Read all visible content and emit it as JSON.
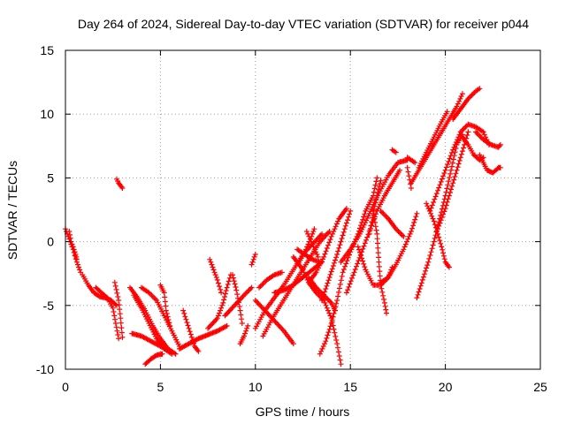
{
  "chart_data": {
    "type": "scatter",
    "title": "Day 264 of 2024, Sidereal Day-to-day VTEC variation (SDTVAR) for receiver p044",
    "xlabel": "GPS time / hours",
    "ylabel": "SDTVAR / TECUs",
    "xlim": [
      0,
      25
    ],
    "ylim": [
      -10,
      15
    ],
    "xticks": [
      0,
      5,
      10,
      15,
      20,
      25
    ],
    "yticks": [
      -10,
      -5,
      0,
      5,
      10,
      15
    ],
    "grid": true,
    "marker": "+",
    "color": "#ff0000",
    "series_traces": [
      [
        [
          0.0,
          1.0
        ],
        [
          0.2,
          0.2
        ],
        [
          0.4,
          -0.6
        ],
        [
          0.6,
          -1.6
        ],
        [
          0.8,
          -2.4
        ]
      ],
      [
        [
          0.2,
          0.8
        ],
        [
          0.3,
          0.0
        ],
        [
          0.5,
          -0.8
        ],
        [
          0.6,
          -1.4
        ]
      ],
      [
        [
          0.9,
          -2.6
        ],
        [
          1.2,
          -3.4
        ],
        [
          1.5,
          -4.0
        ],
        [
          1.8,
          -4.3
        ],
        [
          2.1,
          -4.4
        ],
        [
          2.4,
          -4.6
        ],
        [
          2.7,
          -5.0
        ]
      ],
      [
        [
          1.6,
          -3.6
        ],
        [
          1.9,
          -4.0
        ],
        [
          2.2,
          -4.4
        ],
        [
          2.5,
          -5.2
        ],
        [
          2.8,
          -7.6
        ]
      ],
      [
        [
          2.6,
          -3.2
        ],
        [
          2.8,
          -4.6
        ],
        [
          2.9,
          -6.0
        ],
        [
          3.0,
          -7.5
        ]
      ],
      [
        [
          2.7,
          4.9
        ],
        [
          2.8,
          4.6
        ],
        [
          3.0,
          4.2
        ]
      ],
      [
        [
          3.4,
          -3.6
        ],
        [
          3.8,
          -4.4
        ],
        [
          4.2,
          -5.4
        ],
        [
          4.6,
          -6.6
        ],
        [
          5.0,
          -7.6
        ],
        [
          5.4,
          -8.4
        ],
        [
          5.8,
          -8.8
        ]
      ],
      [
        [
          3.6,
          -4.2
        ],
        [
          4.0,
          -5.2
        ],
        [
          4.4,
          -6.4
        ],
        [
          4.8,
          -7.6
        ],
        [
          5.2,
          -8.4
        ],
        [
          5.6,
          -8.8
        ]
      ],
      [
        [
          3.5,
          -7.2
        ],
        [
          4.0,
          -7.4
        ],
        [
          4.5,
          -7.8
        ],
        [
          5.0,
          -8.2
        ],
        [
          5.5,
          -8.6
        ]
      ],
      [
        [
          4.2,
          -9.6
        ],
        [
          4.5,
          -9.2
        ],
        [
          4.8,
          -8.9
        ],
        [
          5.1,
          -8.8
        ]
      ],
      [
        [
          4.0,
          -3.6
        ],
        [
          4.4,
          -4.0
        ],
        [
          4.8,
          -4.6
        ],
        [
          5.2,
          -5.8
        ],
        [
          5.6,
          -7.0
        ],
        [
          6.0,
          -8.2
        ]
      ],
      [
        [
          5.0,
          -3.4
        ],
        [
          5.2,
          -4.0
        ],
        [
          5.3,
          -5.4
        ],
        [
          5.5,
          -6.6
        ]
      ],
      [
        [
          6.0,
          -8.4
        ],
        [
          6.5,
          -8.0
        ],
        [
          7.0,
          -7.6
        ],
        [
          7.5,
          -7.3
        ],
        [
          8.0,
          -7.0
        ],
        [
          8.5,
          -6.6
        ]
      ],
      [
        [
          6.2,
          -5.4
        ],
        [
          6.5,
          -6.8
        ],
        [
          6.8,
          -8.2
        ],
        [
          7.0,
          -8.6
        ]
      ],
      [
        [
          7.5,
          -6.8
        ],
        [
          8.0,
          -6.0
        ],
        [
          8.3,
          -4.8
        ],
        [
          8.5,
          -3.6
        ],
        [
          8.7,
          -2.6
        ]
      ],
      [
        [
          7.6,
          -1.4
        ],
        [
          7.8,
          -2.2
        ],
        [
          8.0,
          -3.0
        ],
        [
          8.2,
          -4.0
        ]
      ],
      [
        [
          8.4,
          -5.8
        ],
        [
          8.9,
          -5.0
        ],
        [
          9.4,
          -4.2
        ],
        [
          9.8,
          -3.6
        ]
      ],
      [
        [
          8.8,
          -2.6
        ],
        [
          9.0,
          -3.8
        ],
        [
          9.2,
          -5.4
        ],
        [
          9.3,
          -6.4
        ]
      ],
      [
        [
          9.2,
          -8.0
        ],
        [
          9.4,
          -7.4
        ],
        [
          9.6,
          -6.6
        ]
      ],
      [
        [
          10.0,
          -1.0
        ],
        [
          9.9,
          -1.4
        ],
        [
          9.8,
          -1.8
        ]
      ],
      [
        [
          10.0,
          -4.6
        ],
        [
          10.5,
          -5.4
        ],
        [
          11.0,
          -6.2
        ],
        [
          11.5,
          -7.0
        ],
        [
          12.0,
          -8.0
        ]
      ],
      [
        [
          10.0,
          -6.8
        ],
        [
          10.5,
          -5.4
        ],
        [
          11.0,
          -4.4
        ],
        [
          11.5,
          -3.4
        ],
        [
          12.0,
          -2.2
        ],
        [
          12.5,
          -1.0
        ],
        [
          13.0,
          -0.2
        ],
        [
          13.5,
          0.6
        ]
      ],
      [
        [
          10.4,
          -7.4
        ],
        [
          10.9,
          -6.0
        ],
        [
          11.4,
          -4.8
        ],
        [
          11.9,
          -3.6
        ],
        [
          12.4,
          -2.4
        ],
        [
          12.9,
          -1.2
        ],
        [
          13.4,
          0.0
        ],
        [
          13.9,
          0.8
        ]
      ],
      [
        [
          10.2,
          -3.6
        ],
        [
          10.6,
          -3.0
        ],
        [
          11.0,
          -2.6
        ],
        [
          11.4,
          -2.4
        ]
      ],
      [
        [
          11.0,
          -4.0
        ],
        [
          11.5,
          -3.8
        ],
        [
          12.0,
          -3.4
        ],
        [
          12.5,
          -2.8
        ],
        [
          13.0,
          -2.2
        ],
        [
          13.5,
          -1.6
        ]
      ],
      [
        [
          12.0,
          -1.2
        ],
        [
          12.2,
          -1.6
        ],
        [
          12.5,
          -2.2
        ],
        [
          12.8,
          -3.2
        ],
        [
          13.2,
          -4.0
        ],
        [
          13.6,
          -4.6
        ],
        [
          14.0,
          -6.0
        ],
        [
          14.3,
          -8.0
        ],
        [
          14.5,
          -9.6
        ]
      ],
      [
        [
          12.3,
          -1.6
        ],
        [
          12.6,
          -0.8
        ],
        [
          12.9,
          0.2
        ],
        [
          13.1,
          1.0
        ]
      ],
      [
        [
          12.8,
          -2.8
        ],
        [
          13.2,
          -3.6
        ],
        [
          13.6,
          -4.2
        ],
        [
          14.0,
          -4.8
        ],
        [
          14.2,
          -5.4
        ]
      ],
      [
        [
          12.7,
          0.8
        ],
        [
          13.0,
          -0.2
        ],
        [
          13.3,
          -1.2
        ]
      ],
      [
        [
          12.2,
          -0.6
        ],
        [
          12.6,
          -1.0
        ],
        [
          13.0,
          -1.4
        ],
        [
          13.4,
          -1.6
        ]
      ],
      [
        [
          12.8,
          -3.2
        ],
        [
          13.2,
          -2.4
        ],
        [
          13.6,
          -1.2
        ],
        [
          14.0,
          0.4
        ],
        [
          14.4,
          1.8
        ],
        [
          14.8,
          2.6
        ]
      ],
      [
        [
          13.5,
          -4.6
        ],
        [
          13.9,
          -2.8
        ],
        [
          14.3,
          -1.0
        ],
        [
          14.7,
          1.0
        ],
        [
          15.0,
          2.4
        ]
      ],
      [
        [
          13.4,
          -8.8
        ],
        [
          13.7,
          -7.8
        ],
        [
          14.0,
          -6.4
        ],
        [
          14.3,
          -4.6
        ],
        [
          14.6,
          -2.4
        ],
        [
          15.0,
          -0.8
        ],
        [
          15.4,
          0.6
        ],
        [
          15.8,
          2.4
        ],
        [
          16.2,
          3.6
        ],
        [
          16.4,
          5.0
        ]
      ],
      [
        [
          14.5,
          -1.6
        ],
        [
          15.0,
          -0.6
        ],
        [
          15.5,
          0.6
        ],
        [
          16.0,
          2.2
        ],
        [
          16.5,
          3.8
        ],
        [
          17.0,
          5.2
        ],
        [
          17.5,
          6.2
        ],
        [
          18.0,
          6.4
        ]
      ],
      [
        [
          14.8,
          -4.0
        ],
        [
          15.2,
          -2.4
        ],
        [
          15.6,
          -0.8
        ],
        [
          16.0,
          0.8
        ],
        [
          16.4,
          2.4
        ],
        [
          16.8,
          3.6
        ],
        [
          17.2,
          4.6
        ],
        [
          17.6,
          5.6
        ]
      ],
      [
        [
          15.4,
          -0.4
        ],
        [
          15.8,
          -2.2
        ],
        [
          16.2,
          -3.4
        ],
        [
          16.6,
          -3.4
        ],
        [
          17.0,
          -2.8
        ],
        [
          17.2,
          -2.0
        ]
      ],
      [
        [
          16.0,
          0.6
        ],
        [
          16.2,
          2.2
        ],
        [
          16.4,
          3.6
        ],
        [
          16.6,
          4.8
        ]
      ],
      [
        [
          16.2,
          2.4
        ],
        [
          16.4,
          0.6
        ],
        [
          16.5,
          -1.6
        ],
        [
          16.6,
          -3.4
        ],
        [
          16.8,
          -4.8
        ],
        [
          16.9,
          -5.6
        ]
      ],
      [
        [
          16.6,
          2.4
        ],
        [
          17.0,
          1.8
        ],
        [
          17.4,
          1.0
        ],
        [
          17.8,
          0.4
        ]
      ],
      [
        [
          18.0,
          5.8
        ],
        [
          18.2,
          4.2
        ]
      ],
      [
        [
          16.6,
          -3.2
        ],
        [
          17.0,
          -2.8
        ],
        [
          17.4,
          -1.8
        ],
        [
          17.8,
          -0.6
        ],
        [
          18.2,
          0.8
        ],
        [
          18.5,
          2.2
        ]
      ],
      [
        [
          17.2,
          7.2
        ],
        [
          17.4,
          7.0
        ]
      ],
      [
        [
          18.0,
          6.6
        ],
        [
          18.2,
          6.4
        ],
        [
          18.4,
          6.2
        ]
      ],
      [
        [
          18.5,
          -4.4
        ],
        [
          18.8,
          -3.0
        ],
        [
          19.1,
          -1.6
        ],
        [
          19.4,
          0.0
        ],
        [
          19.7,
          1.8
        ],
        [
          20.0,
          3.6
        ],
        [
          20.3,
          5.6
        ],
        [
          20.6,
          7.6
        ],
        [
          20.9,
          8.4
        ]
      ],
      [
        [
          19.0,
          3.0
        ],
        [
          19.4,
          1.6
        ],
        [
          19.8,
          -0.4
        ],
        [
          20.0,
          -1.6
        ],
        [
          20.2,
          -2.0
        ]
      ],
      [
        [
          18.2,
          4.6
        ],
        [
          18.6,
          5.6
        ],
        [
          19.0,
          6.6
        ],
        [
          19.4,
          7.6
        ],
        [
          19.8,
          8.6
        ],
        [
          20.2,
          9.6
        ],
        [
          20.6,
          10.6
        ],
        [
          20.9,
          11.6
        ]
      ],
      [
        [
          18.6,
          5.8
        ],
        [
          19.0,
          7.0
        ],
        [
          19.4,
          8.2
        ],
        [
          19.8,
          9.4
        ],
        [
          20.1,
          10.2
        ]
      ],
      [
        [
          19.2,
          2.4
        ],
        [
          19.6,
          4.0
        ],
        [
          20.0,
          5.6
        ],
        [
          20.4,
          7.2
        ],
        [
          20.8,
          8.6
        ],
        [
          21.2,
          9.2
        ],
        [
          21.6,
          9.0
        ],
        [
          22.0,
          8.6
        ],
        [
          22.3,
          7.6
        ]
      ],
      [
        [
          19.6,
          1.0
        ],
        [
          20.0,
          2.6
        ],
        [
          20.4,
          4.6
        ],
        [
          20.8,
          6.6
        ],
        [
          21.2,
          8.6
        ]
      ],
      [
        [
          20.4,
          9.6
        ],
        [
          20.8,
          10.4
        ],
        [
          21.2,
          11.2
        ],
        [
          21.6,
          11.8
        ],
        [
          21.8,
          12.0
        ]
      ],
      [
        [
          20.8,
          8.4
        ],
        [
          21.2,
          7.6
        ],
        [
          21.5,
          6.8
        ],
        [
          21.8,
          6.4
        ],
        [
          22.0,
          6.6
        ]
      ],
      [
        [
          21.6,
          8.6
        ],
        [
          22.0,
          8.0
        ],
        [
          22.4,
          7.6
        ],
        [
          22.8,
          7.4
        ],
        [
          22.9,
          7.6
        ]
      ],
      [
        [
          21.8,
          6.8
        ],
        [
          22.0,
          6.2
        ],
        [
          22.2,
          5.6
        ],
        [
          22.5,
          5.4
        ],
        [
          22.8,
          5.8
        ],
        [
          22.9,
          5.8
        ]
      ]
    ]
  }
}
